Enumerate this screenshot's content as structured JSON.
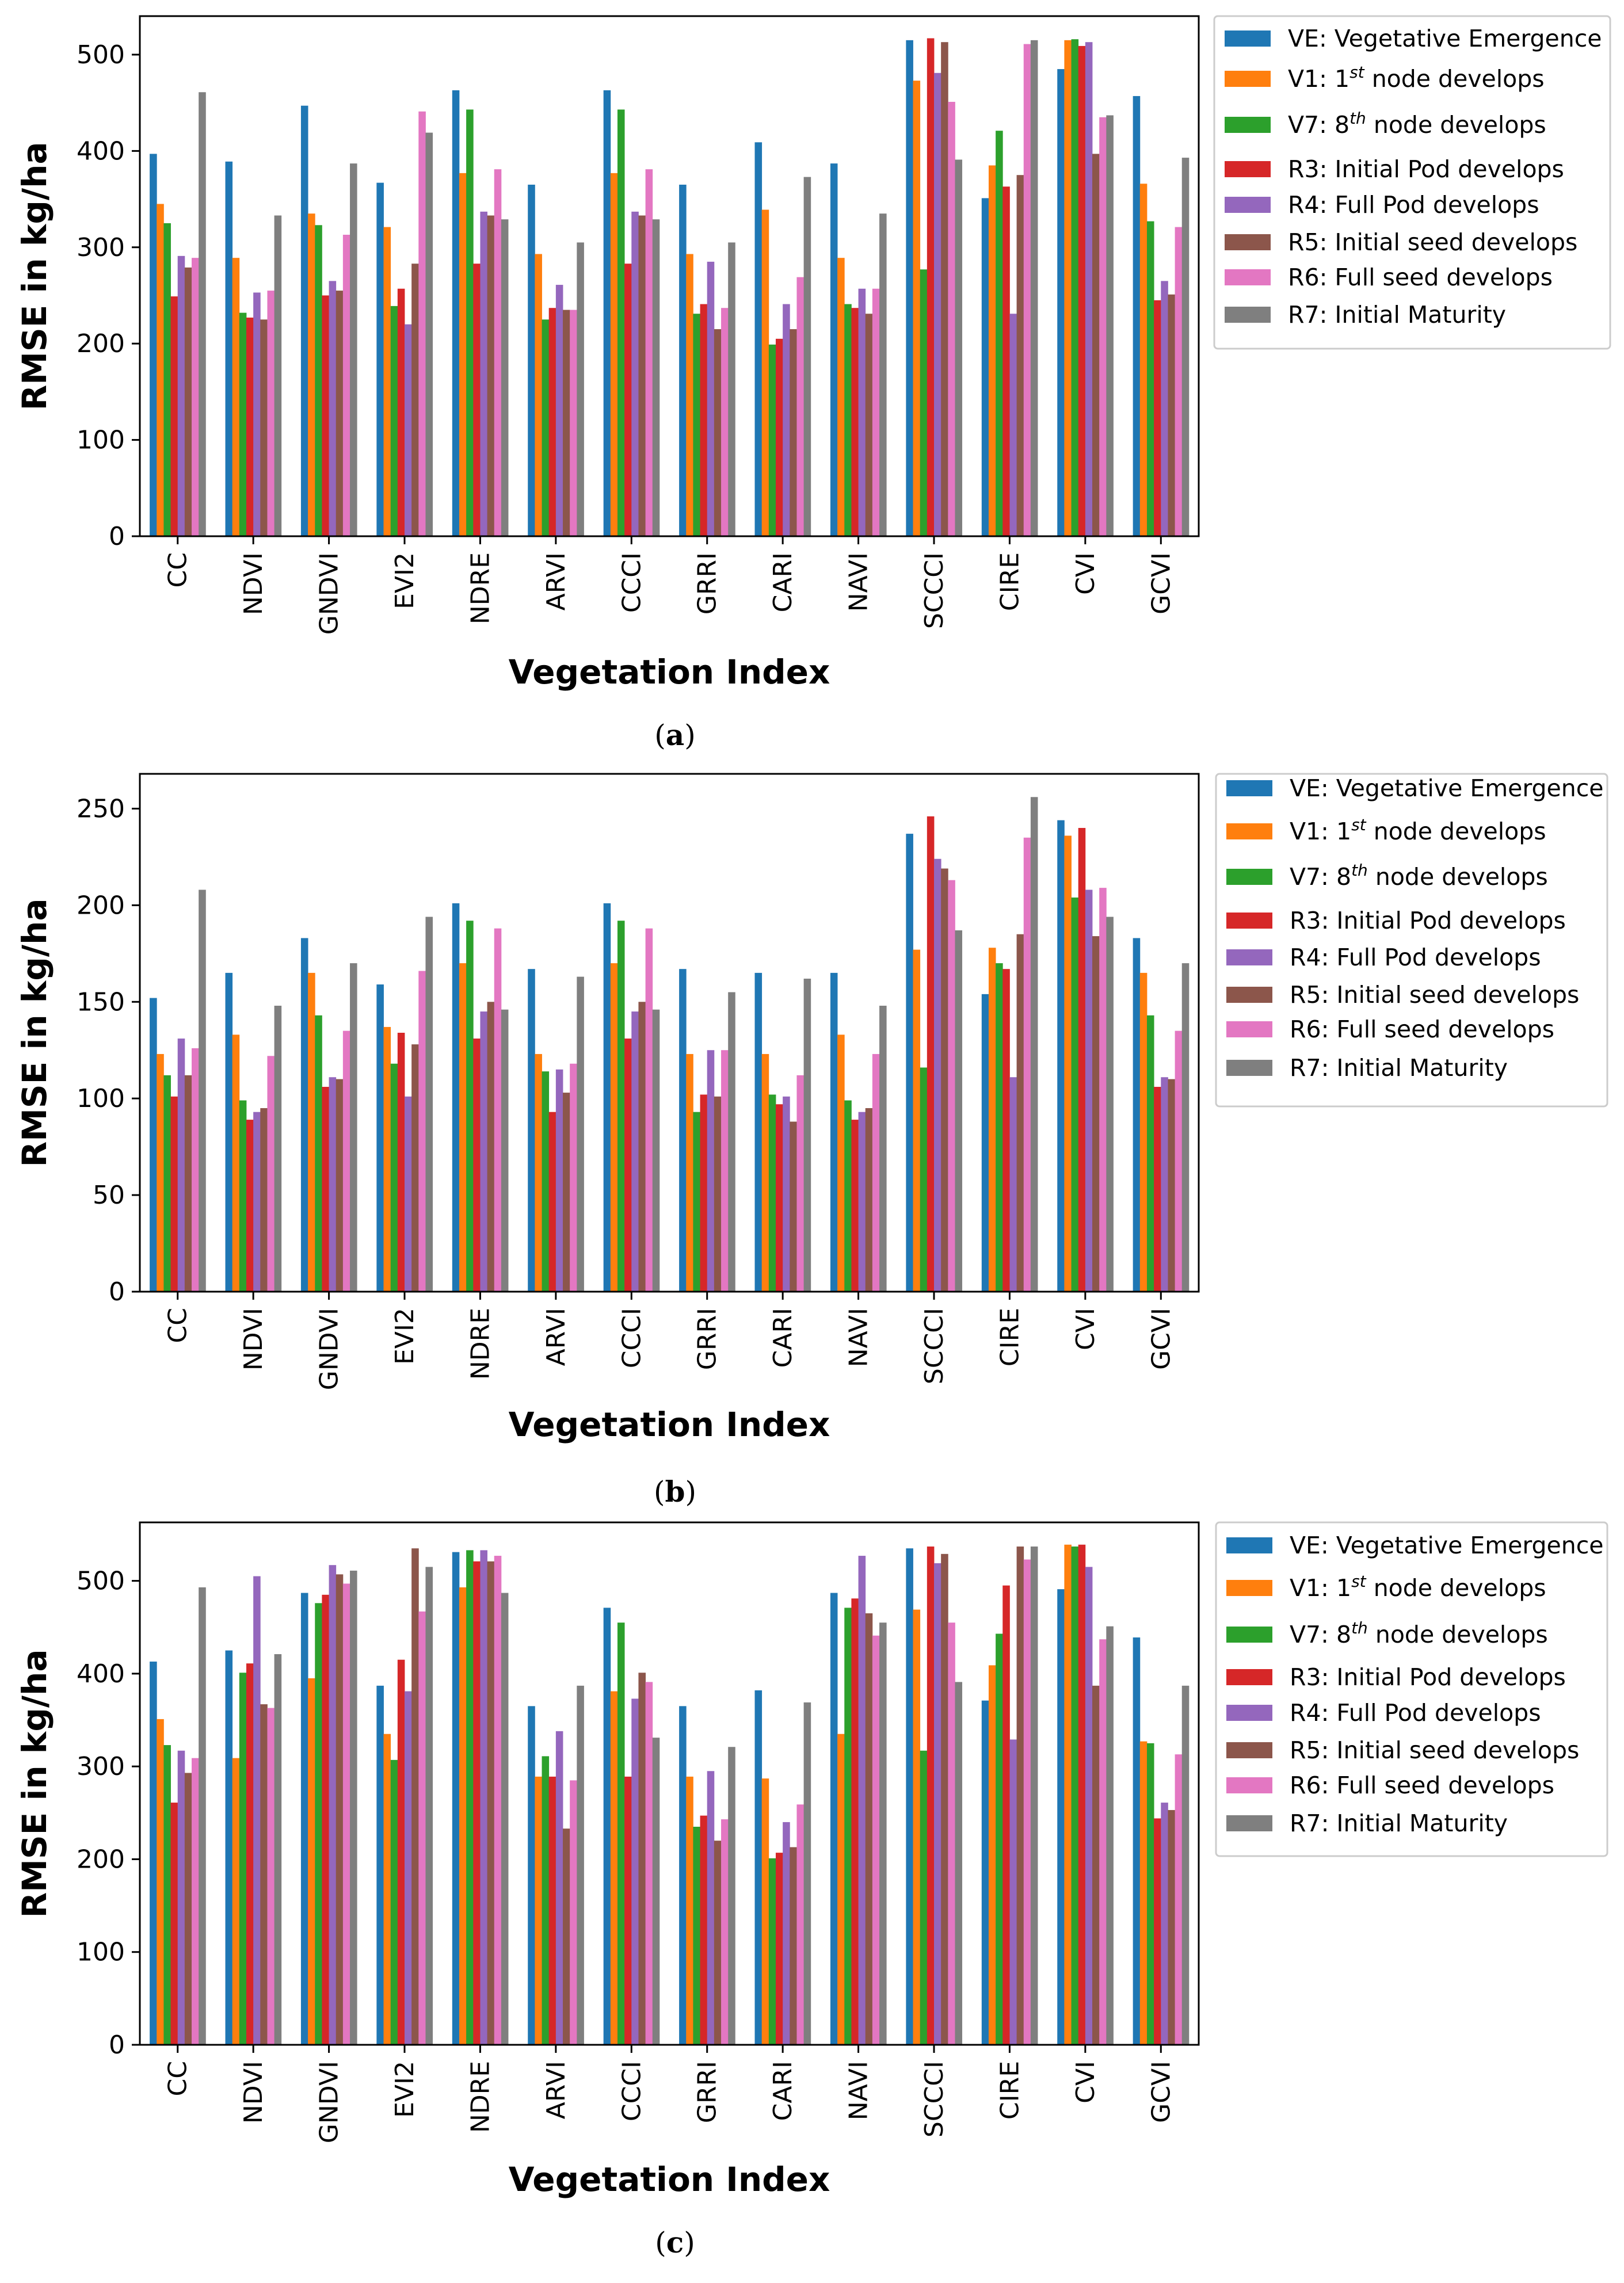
{
  "colors": [
    "#1f77b4",
    "#ff7f0e",
    "#2ca02c",
    "#d62728",
    "#9467bd",
    "#8c564b",
    "#e377c2",
    "#7f7f7f"
  ],
  "legend_entries": [
    {
      "code": "VE",
      "desc": "Vegetative Emergence"
    },
    {
      "code": "V1",
      "desc": "1",
      "sup": "st",
      "after": " node develops"
    },
    {
      "code": "V7",
      "desc": "8",
      "sup": "th",
      "after": " node develops"
    },
    {
      "code": "R3",
      "desc": "Initial Pod develops"
    },
    {
      "code": "R4",
      "desc": "Full Pod develops"
    },
    {
      "code": "R5",
      "desc": "Initial seed develops"
    },
    {
      "code": "R6",
      "desc": "Full seed develops"
    },
    {
      "code": "R7",
      "desc": "Initial Maturity"
    }
  ],
  "chart_data": [
    {
      "type": "bar",
      "panel_label": "a",
      "xlabel": "Vegetation Index",
      "ylabel": "RMSE in kg/ha",
      "ylim": [
        0,
        540
      ],
      "yticks": [
        0,
        100,
        200,
        300,
        400,
        500
      ],
      "categories": [
        "CC",
        "NDVI",
        "GNDVI",
        "EVI2",
        "NDRE",
        "ARVI",
        "CCCI",
        "GRRI",
        "CARI",
        "NAVI",
        "SCCCI",
        "CIRE",
        "CVI",
        "GCVI"
      ],
      "legend_position": "right",
      "series": [
        {
          "name": "VE: Vegetative Emergence",
          "values": [
            397,
            389,
            447,
            367,
            463,
            365,
            463,
            365,
            409,
            387,
            515,
            351,
            485,
            457
          ]
        },
        {
          "name": "V1: 1st node develops",
          "values": [
            345,
            289,
            335,
            321,
            377,
            293,
            377,
            293,
            339,
            289,
            473,
            385,
            515,
            366
          ]
        },
        {
          "name": "V7: 8th node develops",
          "values": [
            325,
            232,
            323,
            239,
            443,
            225,
            443,
            231,
            199,
            241,
            277,
            421,
            516,
            327
          ]
        },
        {
          "name": "R3: Initial Pod develops",
          "values": [
            249,
            227,
            250,
            257,
            283,
            237,
            283,
            241,
            205,
            237,
            517,
            363,
            509,
            245
          ]
        },
        {
          "name": "R4: Full Pod develops",
          "values": [
            291,
            253,
            265,
            220,
            337,
            261,
            337,
            285,
            241,
            257,
            481,
            231,
            513,
            265
          ]
        },
        {
          "name": "R5: Initial seed develops",
          "values": [
            279,
            225,
            255,
            283,
            333,
            235,
            333,
            215,
            215,
            231,
            513,
            375,
            397,
            251
          ]
        },
        {
          "name": "R6: Full seed develops",
          "values": [
            289,
            255,
            313,
            441,
            381,
            235,
            381,
            237,
            269,
            257,
            451,
            511,
            435,
            321
          ]
        },
        {
          "name": "R7: Initial Maturity",
          "values": [
            461,
            333,
            387,
            419,
            329,
            305,
            329,
            305,
            373,
            335,
            391,
            515,
            437,
            393
          ]
        }
      ]
    },
    {
      "type": "bar",
      "panel_label": "b",
      "xlabel": "Vegetation Index",
      "ylabel": "RMSE in kg/ha",
      "ylim": [
        0,
        268
      ],
      "yticks": [
        0,
        50,
        100,
        150,
        200,
        250
      ],
      "categories": [
        "CC",
        "NDVI",
        "GNDVI",
        "EVI2",
        "NDRE",
        "ARVI",
        "CCCI",
        "GRRI",
        "CARI",
        "NAVI",
        "SCCCI",
        "CIRE",
        "CVI",
        "GCVI"
      ],
      "legend_position": "right",
      "series": [
        {
          "name": "VE: Vegetative Emergence",
          "values": [
            152,
            165,
            183,
            159,
            201,
            167,
            201,
            167,
            165,
            165,
            237,
            154,
            244,
            183
          ]
        },
        {
          "name": "V1: 1st node develops",
          "values": [
            123,
            133,
            165,
            137,
            170,
            123,
            170,
            123,
            123,
            133,
            177,
            178,
            236,
            165
          ]
        },
        {
          "name": "V7: 8th node develops",
          "values": [
            112,
            99,
            143,
            118,
            192,
            114,
            192,
            93,
            102,
            99,
            116,
            170,
            204,
            143
          ]
        },
        {
          "name": "R3: Initial Pod develops",
          "values": [
            101,
            89,
            106,
            134,
            131,
            93,
            131,
            102,
            97,
            89,
            246,
            167,
            240,
            106
          ]
        },
        {
          "name": "R4: Full Pod develops",
          "values": [
            131,
            93,
            111,
            101,
            145,
            115,
            145,
            125,
            101,
            93,
            224,
            111,
            208,
            111
          ]
        },
        {
          "name": "R5: Initial seed develops",
          "values": [
            112,
            95,
            110,
            128,
            150,
            103,
            150,
            101,
            88,
            95,
            219,
            185,
            184,
            110
          ]
        },
        {
          "name": "R6: Full seed develops",
          "values": [
            126,
            122,
            135,
            166,
            188,
            118,
            188,
            125,
            112,
            123,
            213,
            235,
            209,
            135
          ]
        },
        {
          "name": "R7: Initial Maturity",
          "values": [
            208,
            148,
            170,
            194,
            146,
            163,
            146,
            155,
            162,
            148,
            187,
            256,
            194,
            170
          ]
        }
      ]
    },
    {
      "type": "bar",
      "panel_label": "c",
      "xlabel": "Vegetation Index",
      "ylabel": "RMSE in kg/ha",
      "ylim": [
        0,
        563
      ],
      "yticks": [
        0,
        100,
        200,
        300,
        400,
        500
      ],
      "categories": [
        "CC",
        "NDVI",
        "GNDVI",
        "EVI2",
        "NDRE",
        "ARVI",
        "CCCI",
        "GRRI",
        "CARI",
        "NAVI",
        "SCCCI",
        "CIRE",
        "CVI",
        "GCVI"
      ],
      "legend_position": "right",
      "series": [
        {
          "name": "VE: Vegetative Emergence",
          "values": [
            413,
            425,
            487,
            387,
            531,
            365,
            471,
            365,
            382,
            487,
            535,
            371,
            491,
            439
          ]
        },
        {
          "name": "V1: 1st node develops",
          "values": [
            351,
            309,
            395,
            335,
            493,
            289,
            381,
            289,
            287,
            335,
            469,
            409,
            539,
            327
          ]
        },
        {
          "name": "V7: 8th node develops",
          "values": [
            323,
            401,
            476,
            307,
            533,
            311,
            455,
            235,
            201,
            471,
            317,
            443,
            537,
            325
          ]
        },
        {
          "name": "R3: Initial Pod develops",
          "values": [
            261,
            411,
            485,
            415,
            521,
            289,
            289,
            247,
            207,
            481,
            537,
            495,
            539,
            244
          ]
        },
        {
          "name": "R4: Full Pod develops",
          "values": [
            317,
            505,
            517,
            381,
            533,
            338,
            373,
            295,
            240,
            527,
            519,
            329,
            515,
            261
          ]
        },
        {
          "name": "R5: Initial seed develops",
          "values": [
            293,
            367,
            507,
            535,
            521,
            233,
            401,
            220,
            213,
            465,
            529,
            537,
            387,
            253
          ]
        },
        {
          "name": "R6: Full seed develops",
          "values": [
            309,
            363,
            497,
            467,
            527,
            285,
            391,
            243,
            259,
            441,
            455,
            523,
            437,
            313
          ]
        },
        {
          "name": "R7: Initial Maturity",
          "values": [
            493,
            421,
            511,
            515,
            487,
            387,
            331,
            321,
            369,
            455,
            391,
            537,
            451,
            387
          ]
        }
      ]
    }
  ]
}
